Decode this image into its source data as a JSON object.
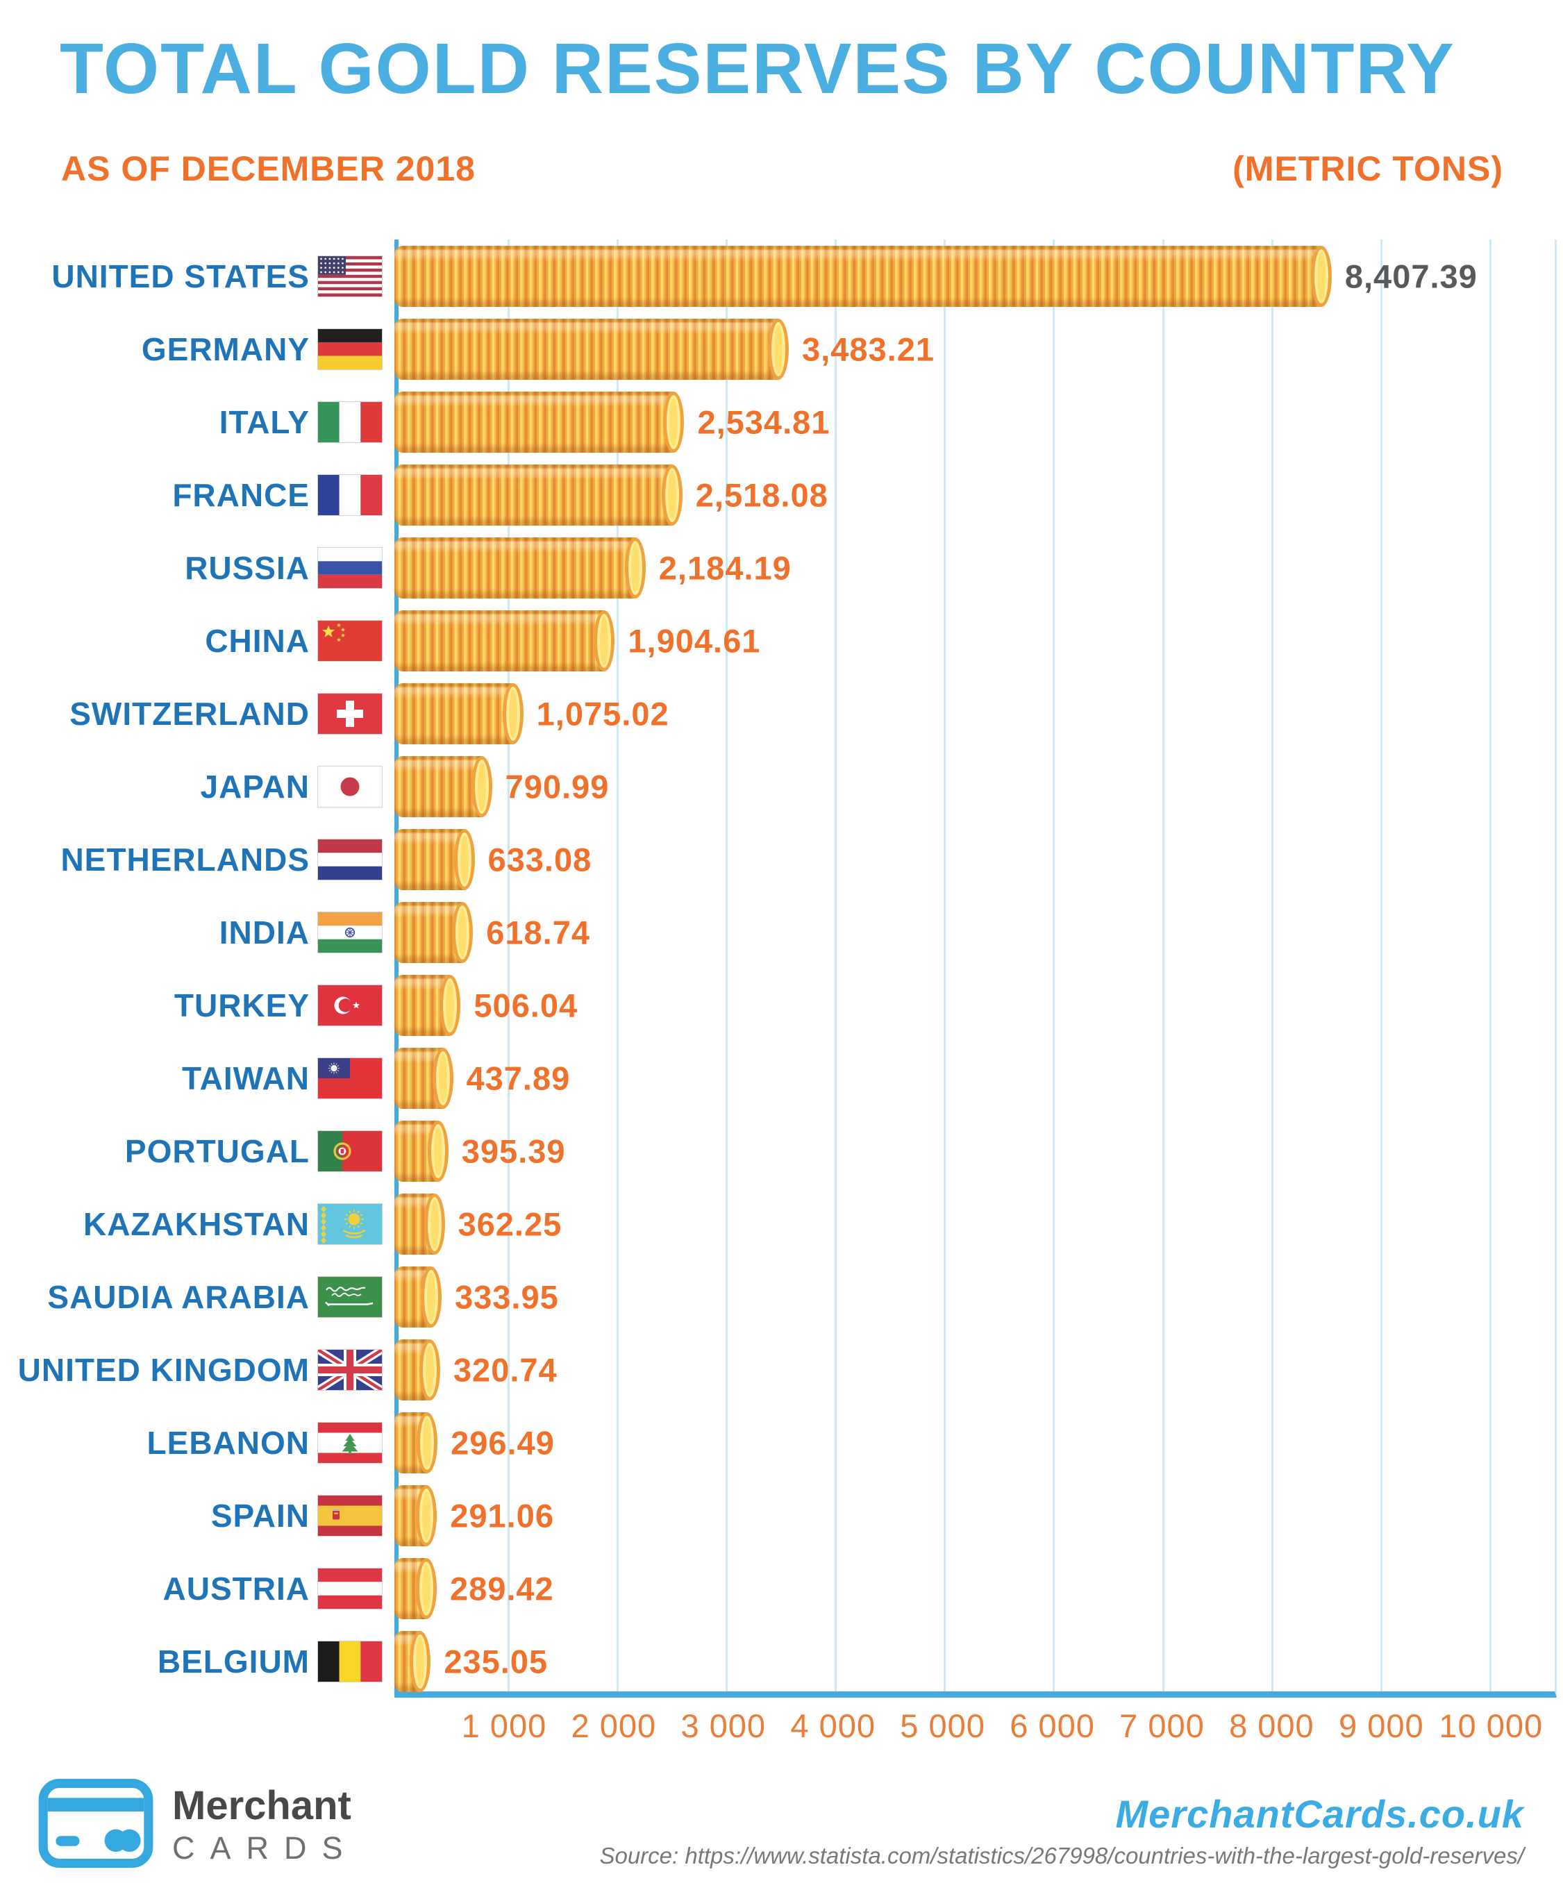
{
  "header": {
    "title": "TOTAL GOLD RESERVES BY COUNTRY",
    "subtitle_left": "AS OF DECEMBER 2018",
    "subtitle_right": "(METRIC TONS)"
  },
  "chart_data": {
    "type": "bar",
    "orientation": "horizontal",
    "title": "Total gold reserves by country as of December 2018",
    "xlabel": "Metric tons",
    "ylabel": "Country",
    "xlim": [
      0,
      10600
    ],
    "grid": true,
    "categories": [
      "UNITED STATES",
      "GERMANY",
      "ITALY",
      "FRANCE",
      "RUSSIA",
      "CHINA",
      "SWITZERLAND",
      "JAPAN",
      "NETHERLANDS",
      "INDIA",
      "TURKEY",
      "TAIWAN",
      "PORTUGAL",
      "KAZAKHSTAN",
      "SAUDIA ARABIA",
      "UNITED KINGDOM",
      "LEBANON",
      "SPAIN",
      "AUSTRIA",
      "BELGIUM"
    ],
    "values": [
      8407.39,
      3483.21,
      2534.81,
      2518.08,
      2184.19,
      1904.61,
      1075.02,
      790.99,
      633.08,
      618.74,
      506.04,
      437.89,
      395.39,
      362.25,
      333.95,
      320.74,
      296.49,
      291.06,
      289.42,
      235.05
    ],
    "value_labels": [
      "8,407.39",
      "3,483.21",
      "2,534.81",
      "2,518.08",
      "2,184.19",
      "1,904.61",
      "1,075.02",
      "790.99",
      "633.08",
      "618.74",
      "506.04",
      "437.89",
      "395.39",
      "362.25",
      "333.95",
      "320.74",
      "296.49",
      "291.06",
      "289.42",
      "235.05"
    ],
    "flags": [
      "united-states",
      "germany",
      "italy",
      "france",
      "russia",
      "china",
      "switzerland",
      "japan",
      "netherlands",
      "india",
      "turkey",
      "taiwan",
      "portugal",
      "kazakhstan",
      "saudi-arabia",
      "united-kingdom",
      "lebanon",
      "spain",
      "austria",
      "belgium"
    ],
    "x_ticks": [
      "1 000",
      "2 000",
      "3 000",
      "4 000",
      "5 000",
      "6 000",
      "7 000",
      "8 000",
      "9 000",
      "10 000"
    ],
    "x_tick_values": [
      1000,
      2000,
      3000,
      4000,
      5000,
      6000,
      7000,
      8000,
      9000,
      10000
    ],
    "bar_style": "gold-coin-stack",
    "first_value_color": "#58595B",
    "value_color": "#F1702A"
  },
  "footer": {
    "logo_line1": "Merchant",
    "logo_line2": "CARDS",
    "site": "MerchantCards.co.uk",
    "source": "Source: https://www.statista.com/statistics/267998/countries-with-the-largest-gold-reserves/"
  },
  "colors": {
    "title_blue": "#4BAEE1",
    "label_blue": "#1F73B7",
    "accent_orange": "#F1702A",
    "axis_blue": "#45AADD",
    "gridline_blue": "#CDE9F7",
    "coin_gold": "#F5AA40",
    "coin_face": "#FFDF6C"
  }
}
